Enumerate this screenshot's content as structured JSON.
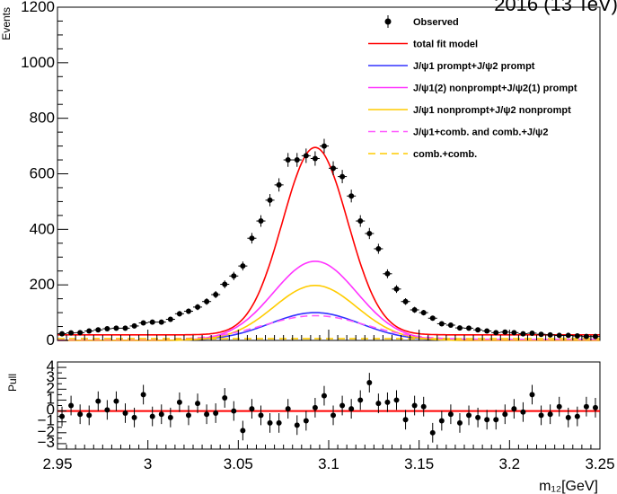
{
  "corner_label": "2016 (13 TeV)",
  "chart_data": [
    {
      "type": "scatter",
      "title": "",
      "xlabel": "",
      "ylabel": "Events",
      "xlim": [
        2.95,
        3.25
      ],
      "ylim": [
        0,
        1200
      ],
      "yticks": [
        0,
        200,
        400,
        600,
        800,
        1000,
        1200
      ],
      "yticklabels": [
        "0",
        "200",
        "400",
        "600",
        "800",
        "1000",
        "1200"
      ],
      "grid": false,
      "legend_position": "top-right",
      "observed": {
        "name": "Observed",
        "color": "#000000",
        "bin_width": 0.005,
        "x": [
          2.9525,
          2.9575,
          2.9625,
          2.9675,
          2.9725,
          2.9775,
          2.9825,
          2.9875,
          2.9925,
          2.9975,
          3.0025,
          3.0075,
          3.0125,
          3.0175,
          3.0225,
          3.0275,
          3.0325,
          3.0375,
          3.0425,
          3.0475,
          3.0525,
          3.0575,
          3.0625,
          3.0675,
          3.0725,
          3.0775,
          3.0825,
          3.0875,
          3.0925,
          3.0975,
          3.1025,
          3.1075,
          3.1125,
          3.1175,
          3.1225,
          3.1275,
          3.1325,
          3.1375,
          3.1425,
          3.1475,
          3.1525,
          3.1575,
          3.1625,
          3.1675,
          3.1725,
          3.1775,
          3.1825,
          3.1875,
          3.1925,
          3.1975,
          3.2025,
          3.2075,
          3.2125,
          3.2175,
          3.2225,
          3.2275,
          3.2325,
          3.2375,
          3.2425,
          3.2475
        ],
        "y": [
          24,
          27,
          28,
          34,
          38,
          42,
          44,
          44,
          52,
          63,
          66,
          66,
          76,
          96,
          105,
          120,
          140,
          165,
          202,
          232,
          268,
          368,
          430,
          505,
          560,
          650,
          650,
          665,
          655,
          700,
          620,
          590,
          520,
          430,
          385,
          330,
          240,
          185,
          140,
          110,
          100,
          80,
          60,
          55,
          45,
          44,
          38,
          34,
          28,
          30,
          28,
          24,
          26,
          22,
          20,
          18,
          18,
          16,
          14,
          14
        ],
        "yerr": [
          5,
          5,
          5,
          6,
          6,
          7,
          7,
          7,
          7,
          8,
          8,
          8,
          9,
          10,
          10,
          11,
          12,
          13,
          14,
          15,
          16,
          19,
          21,
          22,
          24,
          25,
          25,
          26,
          26,
          26,
          25,
          24,
          23,
          21,
          20,
          18,
          16,
          14,
          12,
          11,
          10,
          9,
          8,
          7,
          7,
          7,
          6,
          6,
          5,
          5,
          5,
          5,
          5,
          5,
          4,
          4,
          4,
          4,
          4,
          4
        ]
      },
      "curves": [
        {
          "name": "total fit model",
          "color": "#ff0000",
          "style": "solid",
          "peak": 675,
          "mu": 3.0925,
          "sigma": 0.018,
          "baseline": 20
        },
        {
          "name": "J/ψ1 prompt+J/ψ2 prompt",
          "color": "#3333ff",
          "style": "solid",
          "peak": 100,
          "mu": 3.0925,
          "sigma": 0.025,
          "baseline": 0
        },
        {
          "name": "J/ψ1(2) nonprompt+J/ψ2(1) prompt",
          "color": "#ff33ff",
          "style": "solid",
          "peak": 285,
          "mu": 3.0925,
          "sigma": 0.023,
          "baseline": 0
        },
        {
          "name": "J/ψ1 nonprompt+J/ψ2 nonprompt",
          "color": "#ffcc00",
          "style": "solid",
          "peak": 198,
          "mu": 3.0925,
          "sigma": 0.023,
          "baseline": 0
        },
        {
          "name": "J/ψ1+comb. and comb.+J/ψ2",
          "color": "#ff55ff",
          "style": "dashed",
          "peak": 85,
          "mu": 3.0925,
          "sigma": 0.028,
          "baseline": 4
        },
        {
          "name": "comb.+comb.",
          "color": "#ffcc00",
          "style": "dashed",
          "peak": 0,
          "mu": 3.0925,
          "sigma": 0.05,
          "baseline": 6
        }
      ]
    },
    {
      "type": "scatter",
      "title": "",
      "xlabel": "m₁₂[GeV]",
      "ylabel": "Pull",
      "xlim": [
        2.95,
        3.25
      ],
      "ylim": [
        -3.5,
        4.5
      ],
      "xticks": [
        2.95,
        3.0,
        3.05,
        3.1,
        3.15,
        3.2,
        3.25
      ],
      "xticklabels": [
        "2.95",
        "3",
        "3.05",
        "3.1",
        "3.15",
        "3.2",
        "3.25"
      ],
      "yticks": [
        -3,
        -2,
        -1,
        0,
        1,
        2,
        3,
        4
      ],
      "yticklabels": [
        "−3",
        "−2",
        "−1",
        "0",
        "1",
        "2",
        "3",
        "4"
      ],
      "grid": false,
      "zero_line_color": "#ff0000",
      "pull": {
        "color": "#000000",
        "x": [
          2.9525,
          2.9575,
          2.9625,
          2.9675,
          2.9725,
          2.9775,
          2.9825,
          2.9875,
          2.9925,
          2.9975,
          3.0025,
          3.0075,
          3.0125,
          3.0175,
          3.0225,
          3.0275,
          3.0325,
          3.0375,
          3.0425,
          3.0475,
          3.0525,
          3.0575,
          3.0625,
          3.0675,
          3.0725,
          3.0775,
          3.0825,
          3.0875,
          3.0925,
          3.0975,
          3.1025,
          3.1075,
          3.1125,
          3.1175,
          3.1225,
          3.1275,
          3.1325,
          3.1375,
          3.1425,
          3.1475,
          3.1525,
          3.1575,
          3.1625,
          3.1675,
          3.1725,
          3.1775,
          3.1825,
          3.1875,
          3.1925,
          3.1975,
          3.2025,
          3.2075,
          3.2125,
          3.2175,
          3.2225,
          3.2275,
          3.2325,
          3.2375,
          3.2425,
          3.2475
        ],
        "y": [
          -0.5,
          0.5,
          -0.3,
          -0.4,
          0.9,
          0.1,
          0.9,
          -0.2,
          -0.6,
          1.5,
          -0.5,
          -0.3,
          -0.6,
          0.8,
          -0.4,
          0.7,
          -0.3,
          -0.2,
          1.2,
          0.0,
          -1.8,
          0.2,
          -0.4,
          -1.1,
          -1.1,
          0.2,
          -1.3,
          -0.9,
          0.3,
          1.4,
          -0.4,
          0.5,
          0.2,
          1.0,
          2.6,
          0.7,
          0.8,
          1.0,
          -0.8,
          0.5,
          0.4,
          -2.0,
          -0.9,
          -0.3,
          -1.1,
          -0.4,
          -0.6,
          -0.8,
          -0.8,
          -0.3,
          0.2,
          -0.1,
          1.5,
          -0.4,
          -0.3,
          0.4,
          -0.6,
          -0.5,
          0.4,
          0.3
        ],
        "yerr": [
          0.9,
          0.9,
          0.9,
          0.9,
          0.9,
          0.9,
          0.9,
          0.9,
          0.9,
          0.9,
          0.9,
          0.9,
          0.9,
          0.9,
          0.9,
          0.9,
          0.9,
          0.9,
          0.9,
          0.9,
          0.9,
          0.9,
          0.9,
          0.9,
          0.9,
          0.9,
          0.9,
          0.9,
          0.9,
          0.9,
          0.9,
          0.9,
          0.9,
          0.9,
          0.9,
          0.9,
          0.9,
          0.9,
          0.9,
          0.9,
          0.9,
          0.9,
          0.9,
          0.9,
          0.9,
          0.9,
          0.9,
          0.9,
          0.9,
          0.9,
          0.9,
          0.9,
          0.9,
          0.9,
          0.9,
          0.9,
          0.9,
          0.9,
          0.9,
          0.9
        ]
      }
    }
  ]
}
